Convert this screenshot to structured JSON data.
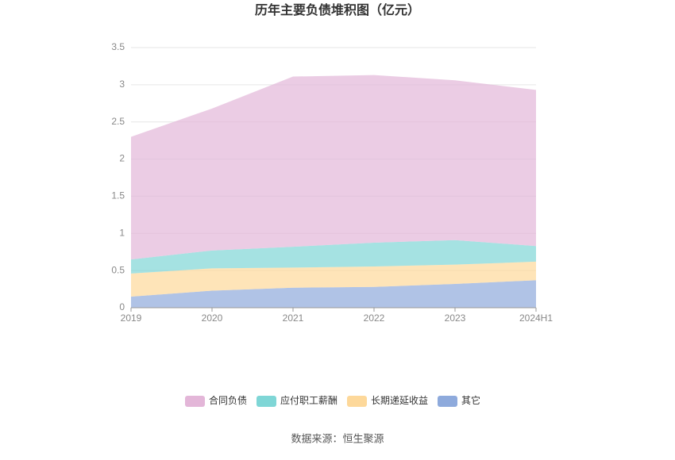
{
  "chart_data": {
    "type": "stacked_area",
    "title": "历年主要负债堆积图（亿元）",
    "categories": [
      "2019",
      "2020",
      "2021",
      "2022",
      "2023",
      "2024H1"
    ],
    "series": [
      {
        "name": "合同负债",
        "color": "#e3b6d8",
        "values": [
          1.65,
          1.91,
          2.29,
          2.255,
          2.15,
          2.1
        ]
      },
      {
        "name": "应付职工薪酬",
        "color": "#7fd6d6",
        "values": [
          0.19,
          0.24,
          0.28,
          0.32,
          0.33,
          0.21
        ]
      },
      {
        "name": "长期递延收益",
        "color": "#fdd89a",
        "values": [
          0.31,
          0.3,
          0.27,
          0.275,
          0.26,
          0.25
        ]
      },
      {
        "name": "其它",
        "color": "#8eaadc",
        "values": [
          0.15,
          0.23,
          0.27,
          0.28,
          0.32,
          0.37
        ]
      }
    ],
    "ylim": [
      0,
      3.5
    ],
    "yticks": [
      0,
      0.5,
      1,
      1.5,
      2,
      2.5,
      3,
      3.5
    ],
    "grid": true,
    "source": "数据来源：恒生聚源"
  }
}
